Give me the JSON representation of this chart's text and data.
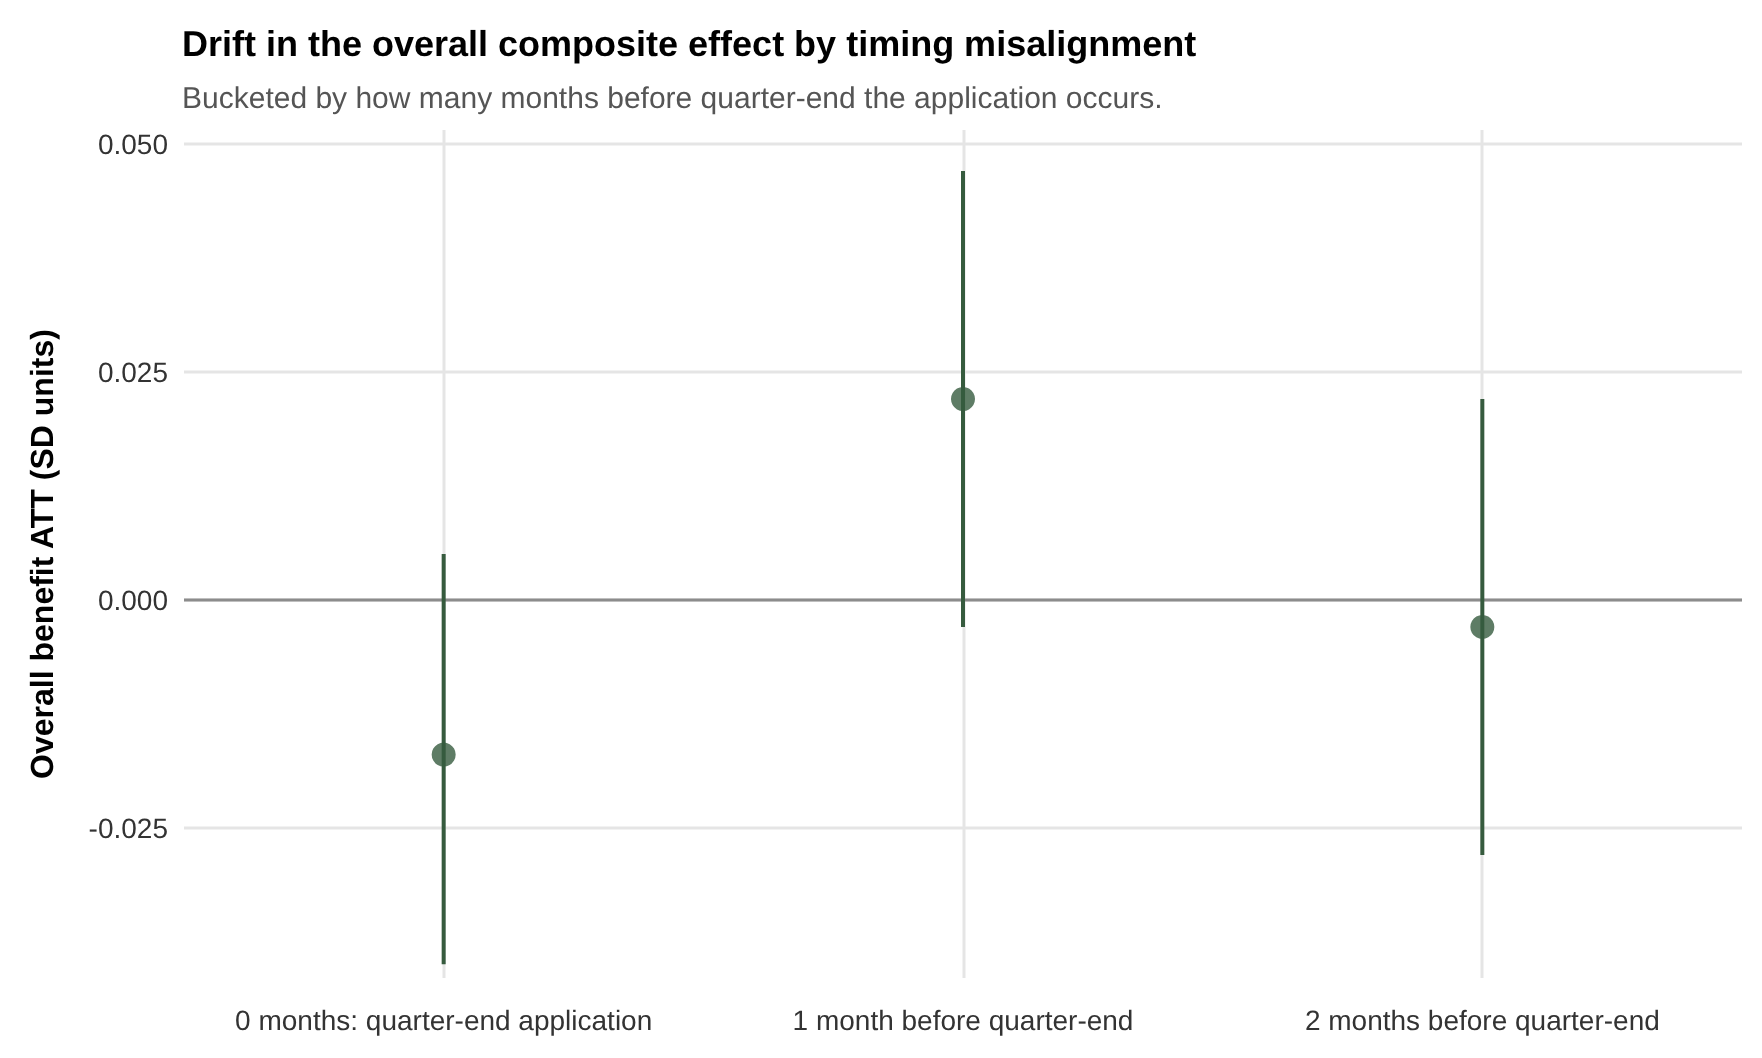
{
  "chart_data": {
    "type": "scatter",
    "title": "Drift in the overall composite effect by timing misalignment",
    "subtitle": "Bucketed by how many months before quarter-end the application occurs.",
    "ylabel": "Overall benefit ATT (SD units)",
    "categories": [
      "0 months: quarter-end application",
      "1 month before quarter-end",
      "2 months before quarter-end"
    ],
    "series": [
      {
        "color": "#365b3e",
        "values": [
          -0.017,
          0.022,
          -0.003
        ],
        "errors": [
          [
            -0.04,
            0.005
          ],
          [
            -0.003,
            0.047
          ],
          [
            -0.028,
            0.022
          ]
        ]
      }
    ],
    "ylim": [
      -0.0415,
      0.0515
    ],
    "yticks": [
      {
        "value": -0.025,
        "label": "-0.025"
      },
      {
        "value": 0,
        "label": "0.000"
      },
      {
        "value": 0.025,
        "label": "0.025"
      },
      {
        "value": 0.05,
        "label": "0.050"
      }
    ],
    "ref_lines": [
      {
        "axis": "y",
        "value": 0,
        "label": null,
        "color": "#8c8c8c"
      }
    ],
    "grid": true,
    "marker": "circle"
  }
}
